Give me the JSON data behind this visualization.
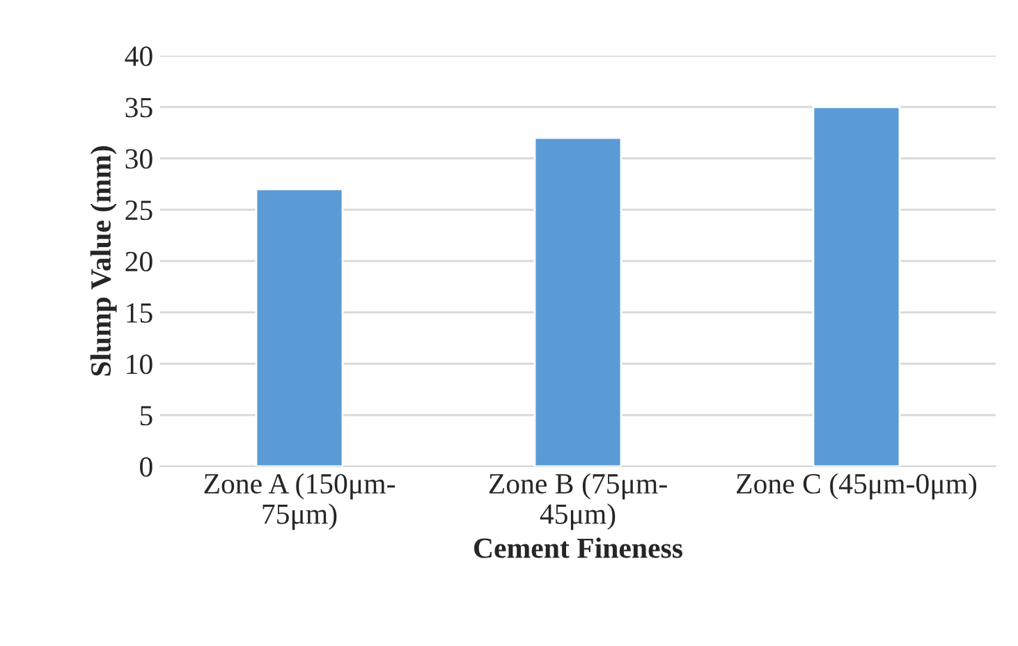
{
  "chart_data": {
    "type": "bar",
    "xlabel": "Cement Fineness",
    "ylabel": "Slump Value (mm)",
    "categories": [
      "Zone A (150μm-\n75μm)",
      "Zone B (75μm-\n45μm)",
      "Zone C (45μm-0μm)"
    ],
    "values": [
      27,
      32,
      35
    ],
    "color": "#5b9bd5",
    "ylim": [
      0,
      40
    ],
    "yticks": [
      0,
      5,
      10,
      15,
      20,
      25,
      30,
      35,
      40
    ],
    "grid": "y",
    "legend": false
  }
}
